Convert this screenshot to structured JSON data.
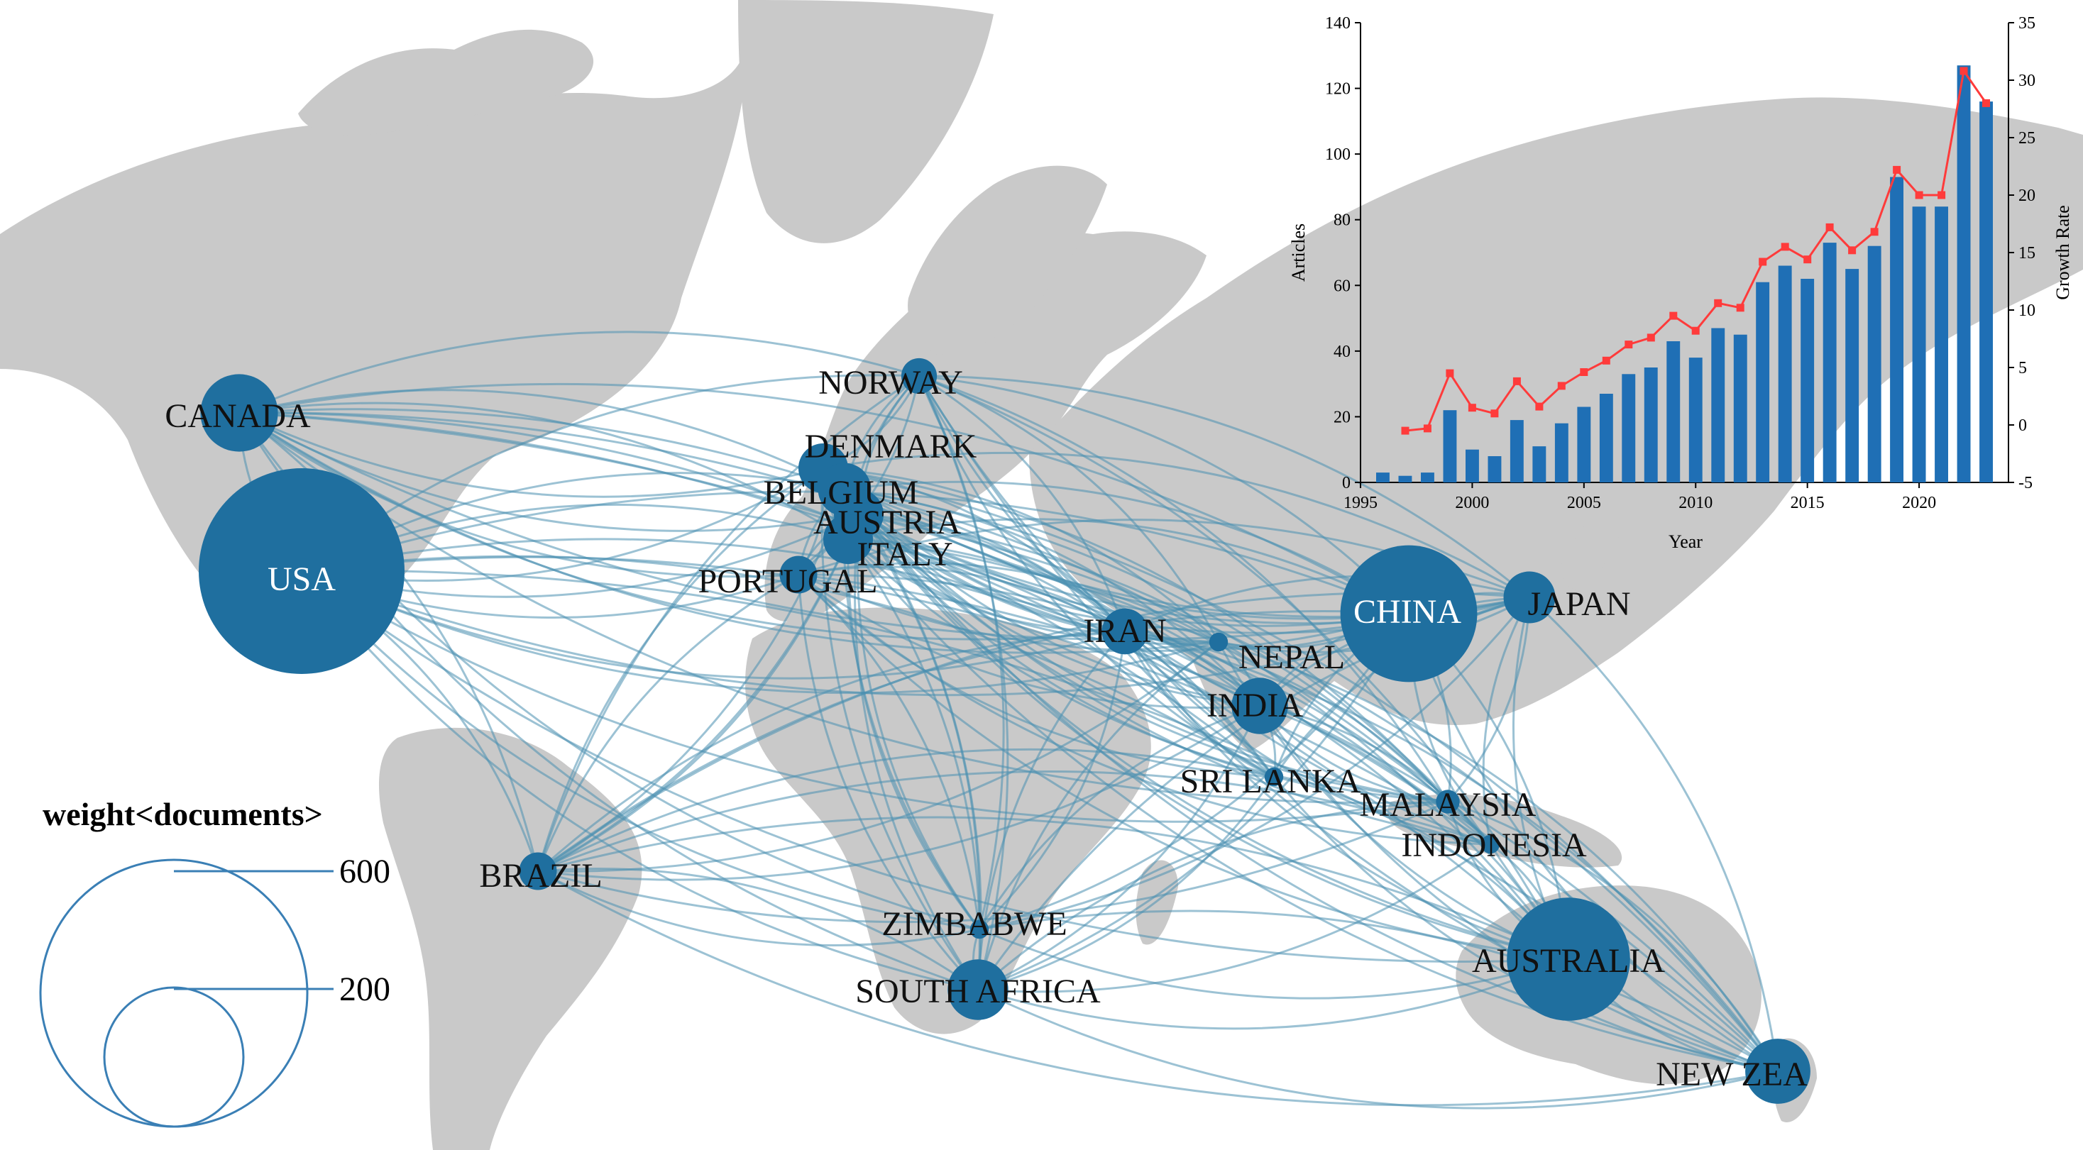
{
  "chart_data": [
    {
      "type": "network-map",
      "colors": {
        "land": "#c9c9c9",
        "node": "#1f6f9f",
        "link": "#4a8fb0",
        "legend_circle": "#3a7fb5"
      },
      "nodes": [
        {
          "name": "USA",
          "weight": 600,
          "label_inside": true
        },
        {
          "name": "CHINA",
          "weight": 265,
          "label_inside": true
        },
        {
          "name": "AUSTRALIA",
          "weight": 215
        },
        {
          "name": "CANADA",
          "weight": 85
        },
        {
          "name": "SOUTH AFRICA",
          "weight": 52
        },
        {
          "name": "NEW ZEA",
          "weight": 60
        },
        {
          "name": "DENMARK",
          "weight": 35
        },
        {
          "name": "BELGIUM",
          "weight": 40
        },
        {
          "name": "AUSTRIA",
          "weight": 35
        },
        {
          "name": "ITALY",
          "weight": 35
        },
        {
          "name": "PORTUGAL",
          "weight": 20
        },
        {
          "name": "NORWAY",
          "weight": 18
        },
        {
          "name": "IRAN",
          "weight": 30
        },
        {
          "name": "INDIA",
          "weight": 45
        },
        {
          "name": "JAPAN",
          "weight": 38
        },
        {
          "name": "BRAZIL",
          "weight": 20
        },
        {
          "name": "NEPAL",
          "weight": 5
        },
        {
          "name": "SRI LANKA",
          "weight": 5
        },
        {
          "name": "MALAYSIA",
          "weight": 8
        },
        {
          "name": "INDONESIA",
          "weight": 5
        },
        {
          "name": "ZIMBABWE",
          "weight": 5
        }
      ],
      "legend": {
        "title": "weight<documents>",
        "sizes": [
          600,
          200
        ]
      }
    },
    {
      "type": "bar",
      "xlabel": "Year",
      "ylabel": "Articles",
      "y2label": "Growth Rate",
      "ylim": [
        0,
        140
      ],
      "y2lim": [
        -5,
        35
      ],
      "xticks": [
        1995,
        2000,
        2005,
        2010,
        2015,
        2020
      ],
      "yticks": [
        0,
        20,
        40,
        60,
        80,
        100,
        120,
        140
      ],
      "y2ticks": [
        -5,
        0,
        5,
        10,
        15,
        20,
        25,
        30,
        35
      ],
      "bar_color": "#1f6fb5",
      "line_color": "#ff3b3b",
      "series": [
        {
          "kind": "bar",
          "x": [
            1996,
            1997,
            1998,
            1999,
            2000,
            2001,
            2002,
            2003,
            2004,
            2005,
            2006,
            2007,
            2008,
            2009,
            2010,
            2011,
            2012,
            2013,
            2014,
            2015,
            2016,
            2017,
            2018,
            2019,
            2020,
            2021,
            2022,
            2023
          ],
          "values": [
            3,
            2,
            3,
            22,
            10,
            8,
            19,
            11,
            18,
            23,
            27,
            33,
            35,
            43,
            38,
            47,
            45,
            61,
            66,
            62,
            73,
            65,
            72,
            93,
            84,
            84,
            127,
            116
          ]
        },
        {
          "kind": "line",
          "axis": "right",
          "x": [
            1997,
            1998,
            1999,
            2000,
            2001,
            2002,
            2003,
            2004,
            2005,
            2006,
            2007,
            2008,
            2009,
            2010,
            2011,
            2012,
            2013,
            2014,
            2015,
            2016,
            2017,
            2018,
            2019,
            2020,
            2021,
            2022,
            2023
          ],
          "values": [
            -0.5,
            -0.3,
            4.5,
            1.5,
            1,
            3.8,
            1.6,
            3.4,
            4.6,
            5.6,
            7,
            7.6,
            9.5,
            8.2,
            10.6,
            10.2,
            14.2,
            15.5,
            14.4,
            17.2,
            15.2,
            16.8,
            22.2,
            20,
            20,
            30.8,
            28
          ]
        }
      ]
    }
  ]
}
